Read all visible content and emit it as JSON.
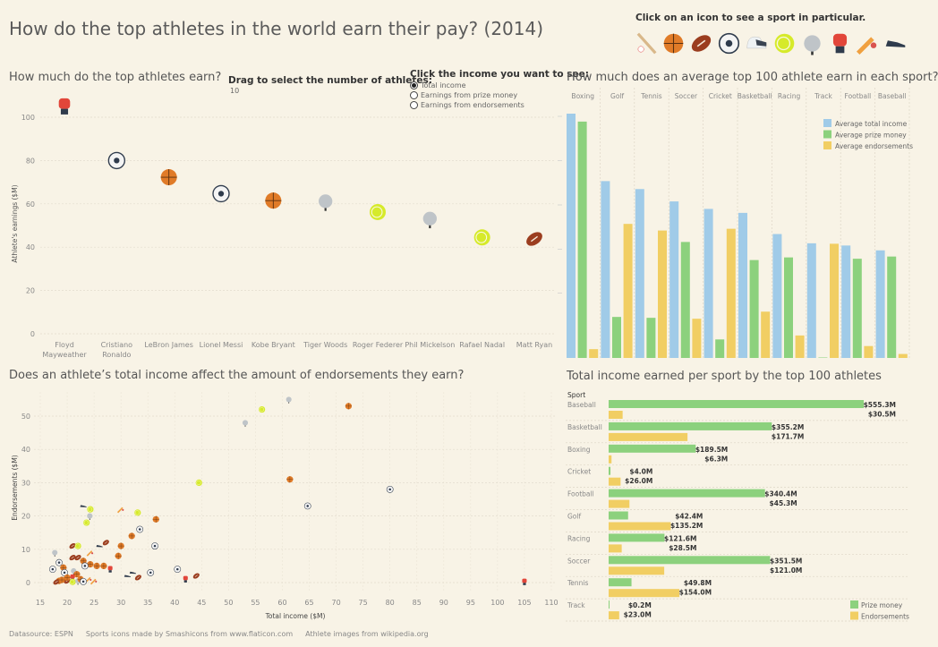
{
  "title": "How do the top athletes in the world earn their pay? (2014)",
  "sport_picker": {
    "label": "Click on an icon to see a sport in particular.",
    "icons": [
      "baseball",
      "basketball",
      "football",
      "soccer",
      "racing",
      "tennis",
      "golf",
      "boxing",
      "cricket",
      "track"
    ]
  },
  "colors": {
    "background": "#f8f3e6",
    "total": "#a0cbe8",
    "prize": "#8cd17d",
    "endorsements": "#f1ce63",
    "sports": {
      "baseball": "#d9b88a",
      "basketball": "#e07b28",
      "football": "#9b3d1f",
      "soccer": "#2f3b4c",
      "racing": "#3a4350",
      "tennis": "#d6ea2a",
      "golf": "#bfc4c8",
      "boxing": "#e2463a",
      "cricket": "#f0a040",
      "track": "#2f3b4c"
    }
  },
  "controls": {
    "drag_label": "Drag to select the number of athletes:",
    "drag_value": "10",
    "radio_title": "Click the income you want to see:",
    "radio_options": [
      "Total income",
      "Earnings from prize money",
      "Earnings from endorsements"
    ],
    "selected_index": 0
  },
  "panels": {
    "athletes_title": "How much do the top athletes earn?",
    "sport_avg_title": "How much does an average top 100 athlete earn in each sport?",
    "scatter_title": "Does an athlete’s total income affect the amount of endorsements they earn?",
    "totals_title": "Total income earned per sport by the top 100 athletes"
  },
  "chart_data": [
    {
      "id": "athletes",
      "type": "scatter",
      "ylabel": "Athlete's earnings ($M)",
      "ylim": [
        0,
        100
      ],
      "yticks": [
        0,
        20,
        40,
        60,
        80,
        100
      ],
      "grid": true,
      "categories": [
        "Floyd Mayweather",
        "Cristiano Ronaldo",
        "LeBron James",
        "Lionel Messi",
        "Kobe Bryant",
        "Tiger Woods",
        "Roger Federer",
        "Phil Mickelson",
        "Rafael Nadal",
        "Matt Ryan"
      ],
      "sports": [
        "boxing",
        "soccer",
        "basketball",
        "soccer",
        "basketball",
        "golf",
        "tennis",
        "golf",
        "tennis",
        "football"
      ],
      "values": [
        105,
        80,
        72.3,
        64.7,
        61.5,
        61.2,
        56.2,
        53.2,
        44.5,
        43.8
      ]
    },
    {
      "id": "sport_avg",
      "type": "bar",
      "note": "no value axis shown; values in relative units",
      "categories": [
        "Boxing",
        "Golf",
        "Tennis",
        "Soccer",
        "Cricket",
        "Basketball",
        "Racing",
        "Track",
        "Football",
        "Baseball"
      ],
      "series": [
        {
          "name": "Average total income",
          "values": [
            55.4,
            40.1,
            38.3,
            35.5,
            33.8,
            32.9,
            28.1,
            26.0,
            25.5,
            24.4
          ]
        },
        {
          "name": "Average prize money",
          "values": [
            53.6,
            9.3,
            9.1,
            26.3,
            4.2,
            22.2,
            22.8,
            0.1,
            22.5,
            23.0
          ]
        },
        {
          "name": "Average endorsements",
          "values": [
            2.0,
            30.4,
            28.9,
            8.9,
            29.3,
            10.5,
            5.1,
            25.9,
            2.7,
            0.9
          ]
        }
      ],
      "legend": "top-right"
    },
    {
      "id": "income_vs_endorsements",
      "type": "scatter",
      "xlabel": "Total income ($M)",
      "ylabel": "Endorsements ($M)",
      "xlim": [
        15,
        110
      ],
      "ylim": [
        0,
        55
      ],
      "xticks": [
        15,
        20,
        25,
        30,
        35,
        40,
        45,
        50,
        55,
        60,
        65,
        70,
        75,
        80,
        85,
        90,
        95,
        100,
        105,
        110
      ],
      "yticks": [
        0,
        10,
        20,
        30,
        40,
        50
      ],
      "points": [
        [
          61.2,
          55,
          "golf"
        ],
        [
          56.2,
          52,
          "tennis"
        ],
        [
          72.3,
          53,
          "basketball"
        ],
        [
          53.1,
          48,
          "golf"
        ],
        [
          44.5,
          30,
          "tennis"
        ],
        [
          61.4,
          31,
          "basketball"
        ],
        [
          80,
          28,
          "soccer"
        ],
        [
          64.7,
          23,
          "soccer"
        ],
        [
          30,
          22,
          "cricket"
        ],
        [
          23,
          23,
          "track"
        ],
        [
          24.3,
          22,
          "tennis"
        ],
        [
          24.2,
          20,
          "golf"
        ],
        [
          23.6,
          18,
          "tennis"
        ],
        [
          33.1,
          21,
          "tennis"
        ],
        [
          36.5,
          19,
          "basketball"
        ],
        [
          33.5,
          16,
          "soccer"
        ],
        [
          32,
          14,
          "basketball"
        ],
        [
          36.3,
          11,
          "soccer"
        ],
        [
          30,
          11,
          "basketball"
        ],
        [
          27.2,
          12,
          "football"
        ],
        [
          26,
          11,
          "track"
        ],
        [
          21,
          11,
          "football"
        ],
        [
          22,
          11,
          "tennis"
        ],
        [
          17.7,
          9,
          "golf"
        ],
        [
          29.5,
          8,
          "basketball"
        ],
        [
          21,
          7.5,
          "football"
        ],
        [
          22,
          7.5,
          "football"
        ],
        [
          24.3,
          9,
          "cricket"
        ],
        [
          23,
          6.5,
          "basketball"
        ],
        [
          24.3,
          5.5,
          "basketball"
        ],
        [
          25.5,
          5,
          "basketball"
        ],
        [
          26.8,
          5,
          "basketball"
        ],
        [
          28,
          4,
          "boxing"
        ],
        [
          17.3,
          4,
          "soccer"
        ],
        [
          18.5,
          6,
          "soccer"
        ],
        [
          19.3,
          4.5,
          "basketball"
        ],
        [
          19.5,
          3,
          "soccer"
        ],
        [
          21.2,
          3.5,
          "golf"
        ],
        [
          21.8,
          2.5,
          "basketball"
        ],
        [
          23.3,
          5,
          "soccer"
        ],
        [
          31.2,
          2,
          "track"
        ],
        [
          32.2,
          3,
          "track"
        ],
        [
          33.2,
          1.5,
          "football"
        ],
        [
          35.5,
          3,
          "soccer"
        ],
        [
          40.5,
          4,
          "soccer"
        ],
        [
          42,
          1,
          "boxing"
        ],
        [
          44,
          2,
          "football"
        ],
        [
          105,
          0.2,
          "boxing"
        ],
        [
          18.5,
          0.5,
          "basketball"
        ],
        [
          18,
          0.2,
          "football"
        ],
        [
          21,
          1.5,
          "boxing"
        ],
        [
          20,
          0.5,
          "football"
        ],
        [
          21,
          0.2,
          "tennis"
        ],
        [
          22,
          0.5,
          "golf"
        ],
        [
          22.5,
          1,
          "basketball"
        ],
        [
          24,
          1,
          "cricket"
        ],
        [
          25,
          0.5,
          "cricket"
        ],
        [
          23,
          0.3,
          "soccer"
        ],
        [
          20,
          1.5,
          "basketball"
        ],
        [
          19,
          0.8,
          "basketball"
        ]
      ]
    },
    {
      "id": "totals_per_sport",
      "type": "bar",
      "orientation": "horizontal",
      "row_header": "Sport",
      "categories": [
        "Baseball",
        "Basketball",
        "Boxing",
        "Cricket",
        "Football",
        "Golf",
        "Racing",
        "Soccer",
        "Tennis",
        "Track"
      ],
      "series": [
        {
          "name": "Prize money",
          "values": [
            555.3,
            355.2,
            189.5,
            4.0,
            340.4,
            42.4,
            121.6,
            351.5,
            49.8,
            0.2
          ],
          "labels": [
            "$555.3M",
            "$355.2M",
            "$189.5M",
            "$4.0M",
            "$340.4M",
            "$42.4M",
            "$121.6M",
            "$351.5M",
            "$49.8M",
            "$0.2M"
          ]
        },
        {
          "name": "Endorsements",
          "values": [
            30.5,
            171.7,
            6.3,
            26.0,
            45.3,
            135.2,
            28.5,
            121.0,
            154.0,
            23.0
          ],
          "labels": [
            "$30.5M",
            "$171.7M",
            "$6.3M",
            "$26.0M",
            "$45.3M",
            "$135.2M",
            "$28.5M",
            "$121.0M",
            "$154.0M",
            "$23.0M"
          ]
        }
      ],
      "legend": "bottom-right"
    }
  ],
  "footer": [
    "Datasource: ESPN",
    "Sports icons made by Smashicons from www.flaticon.com",
    "Athlete images from wikipedia.org"
  ]
}
